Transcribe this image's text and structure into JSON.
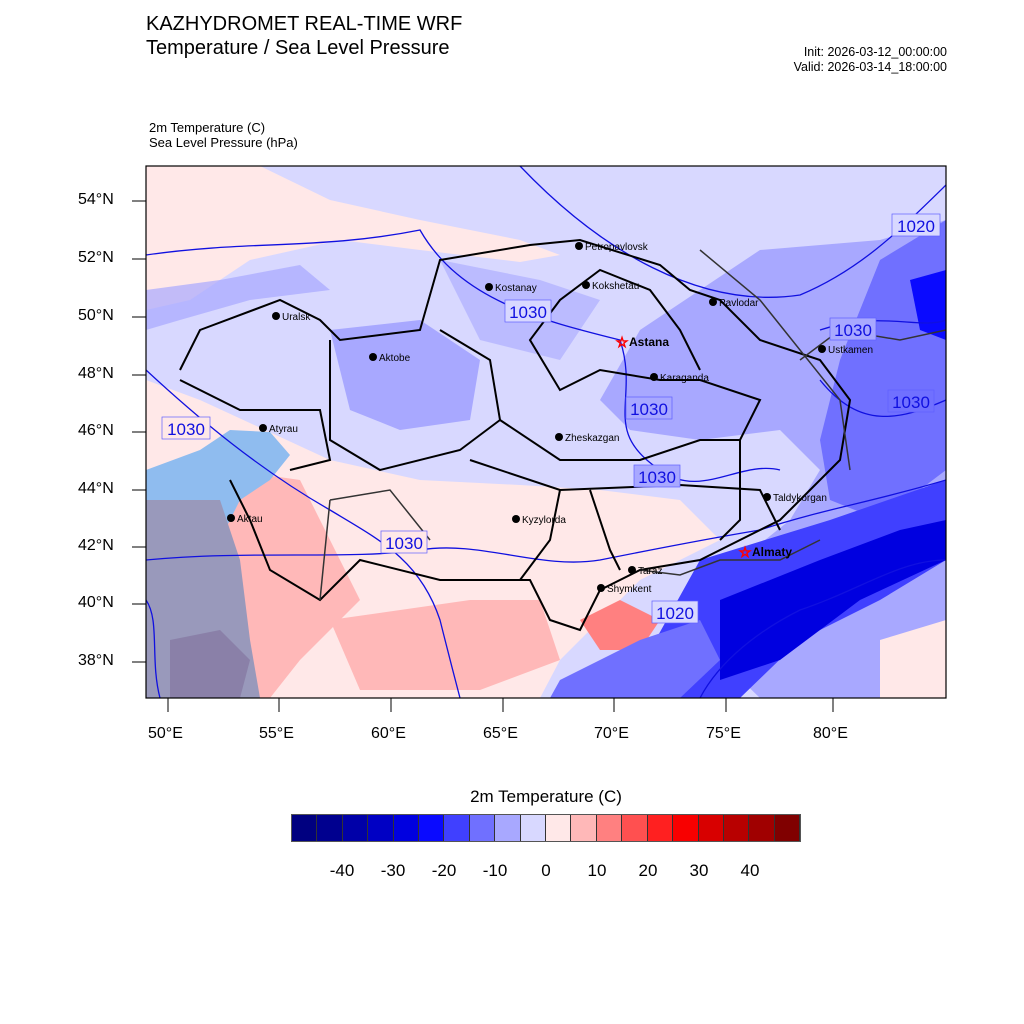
{
  "header": {
    "title": "KAZHYDROMET REAL-TIME WRF",
    "subtitle": "Temperature / Sea Level Pressure",
    "init": "Init: 2026-03-12_00:00:00",
    "valid": "Valid: 2026-03-14_18:00:00"
  },
  "fields": {
    "field1": "2m Temperature   (C)",
    "field2": "Sea Level Pressure   (hPa)"
  },
  "map": {
    "lat_labels": [
      "54°N",
      "52°N",
      "50°N",
      "48°N",
      "46°N",
      "44°N",
      "42°N",
      "40°N",
      "38°N"
    ],
    "lon_labels": [
      "50°E",
      "55°E",
      "60°E",
      "65°E",
      "70°E",
      "75°E",
      "80°E"
    ],
    "isobar_labels": [
      "1020",
      "1030",
      "1030",
      "1030",
      "1030",
      "1030",
      "1030",
      "1030",
      "1020"
    ],
    "cities": [
      {
        "name": "Petropavlovsk",
        "capital": false
      },
      {
        "name": "Kostanay",
        "capital": false
      },
      {
        "name": "Kokshetau",
        "capital": false
      },
      {
        "name": "Pavlodar",
        "capital": false
      },
      {
        "name": "Astana",
        "capital": true
      },
      {
        "name": "Karaganda",
        "capital": false
      },
      {
        "name": "Zheskazgan",
        "capital": false
      },
      {
        "name": "Ustkamen",
        "capital": false
      },
      {
        "name": "Uralsk",
        "capital": false
      },
      {
        "name": "Aktobe",
        "capital": false
      },
      {
        "name": "Atyrau",
        "capital": false
      },
      {
        "name": "Aktau",
        "capital": false
      },
      {
        "name": "Kyzylorda",
        "capital": false
      },
      {
        "name": "Taraz",
        "capital": false
      },
      {
        "name": "Shymkent",
        "capital": false
      },
      {
        "name": "Almaty",
        "capital": true
      },
      {
        "name": "Taldykorgan",
        "capital": false
      }
    ]
  },
  "colorbar": {
    "title": "2m Temperature  (C)",
    "labels": [
      "-40",
      "-30",
      "-20",
      "-10",
      "0",
      "10",
      "20",
      "30",
      "40"
    ],
    "colors": [
      "#000080",
      "#00008f",
      "#0000a8",
      "#0000c4",
      "#0000e0",
      "#0a0aff",
      "#4040ff",
      "#7070ff",
      "#a8a8ff",
      "#d8d8ff",
      "#ffe8e8",
      "#ffb8b8",
      "#ff8080",
      "#ff5050",
      "#ff2020",
      "#f80000",
      "#d80000",
      "#b80000",
      "#a00000",
      "#800000"
    ]
  }
}
